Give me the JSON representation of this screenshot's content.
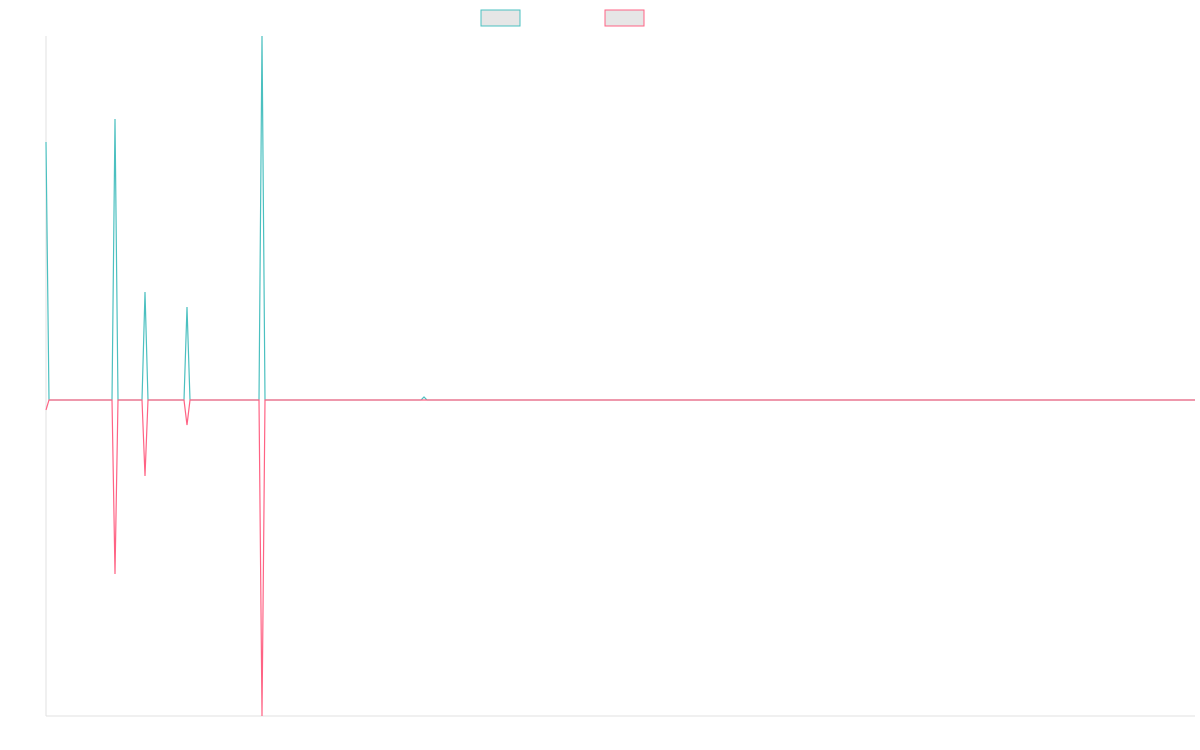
{
  "chart_data": {
    "type": "line",
    "x": [
      0,
      1,
      22,
      23,
      24,
      32,
      33,
      34,
      46,
      47,
      48,
      71,
      72,
      73,
      125,
      126,
      127,
      383
    ],
    "xlim": [
      0,
      383
    ],
    "ylim": [
      -316,
      364
    ],
    "series": [
      {
        "color": "#4bc0c0",
        "values": [
          258,
          0,
          0,
          281,
          0,
          0,
          108,
          0,
          0,
          93,
          0,
          0,
          364,
          0,
          0,
          3,
          0,
          0
        ]
      },
      {
        "color": "#ff6384",
        "values": [
          -10,
          0,
          0,
          -174,
          0,
          0,
          -76,
          0,
          0,
          -25,
          0,
          0,
          -316,
          0,
          0,
          0,
          0,
          0
        ]
      }
    ]
  }
}
